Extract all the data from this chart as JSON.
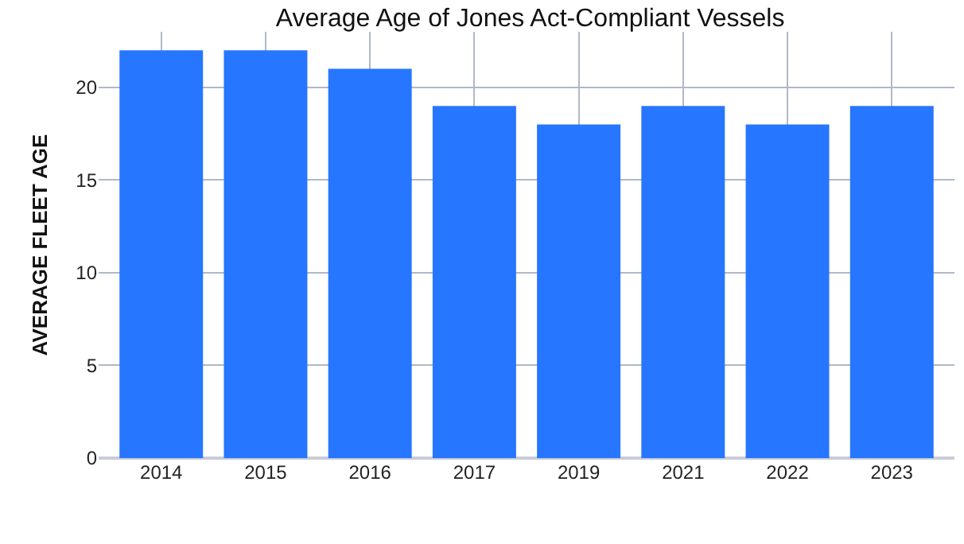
{
  "chart_data": {
    "type": "bar",
    "title": "Average Age of Jones Act-Compliant Vessels",
    "ylabel": "AVERAGE FLEET AGE",
    "categories": [
      "2014",
      "2015",
      "2016",
      "2017",
      "2019",
      "2021",
      "2022",
      "2023"
    ],
    "values": [
      22,
      22,
      21,
      19,
      18,
      19,
      18,
      19
    ],
    "color": "#2776ff",
    "ylim": [
      0,
      23
    ],
    "yticks": [
      0,
      5,
      10,
      15,
      20
    ],
    "grid": true,
    "legend": false
  }
}
